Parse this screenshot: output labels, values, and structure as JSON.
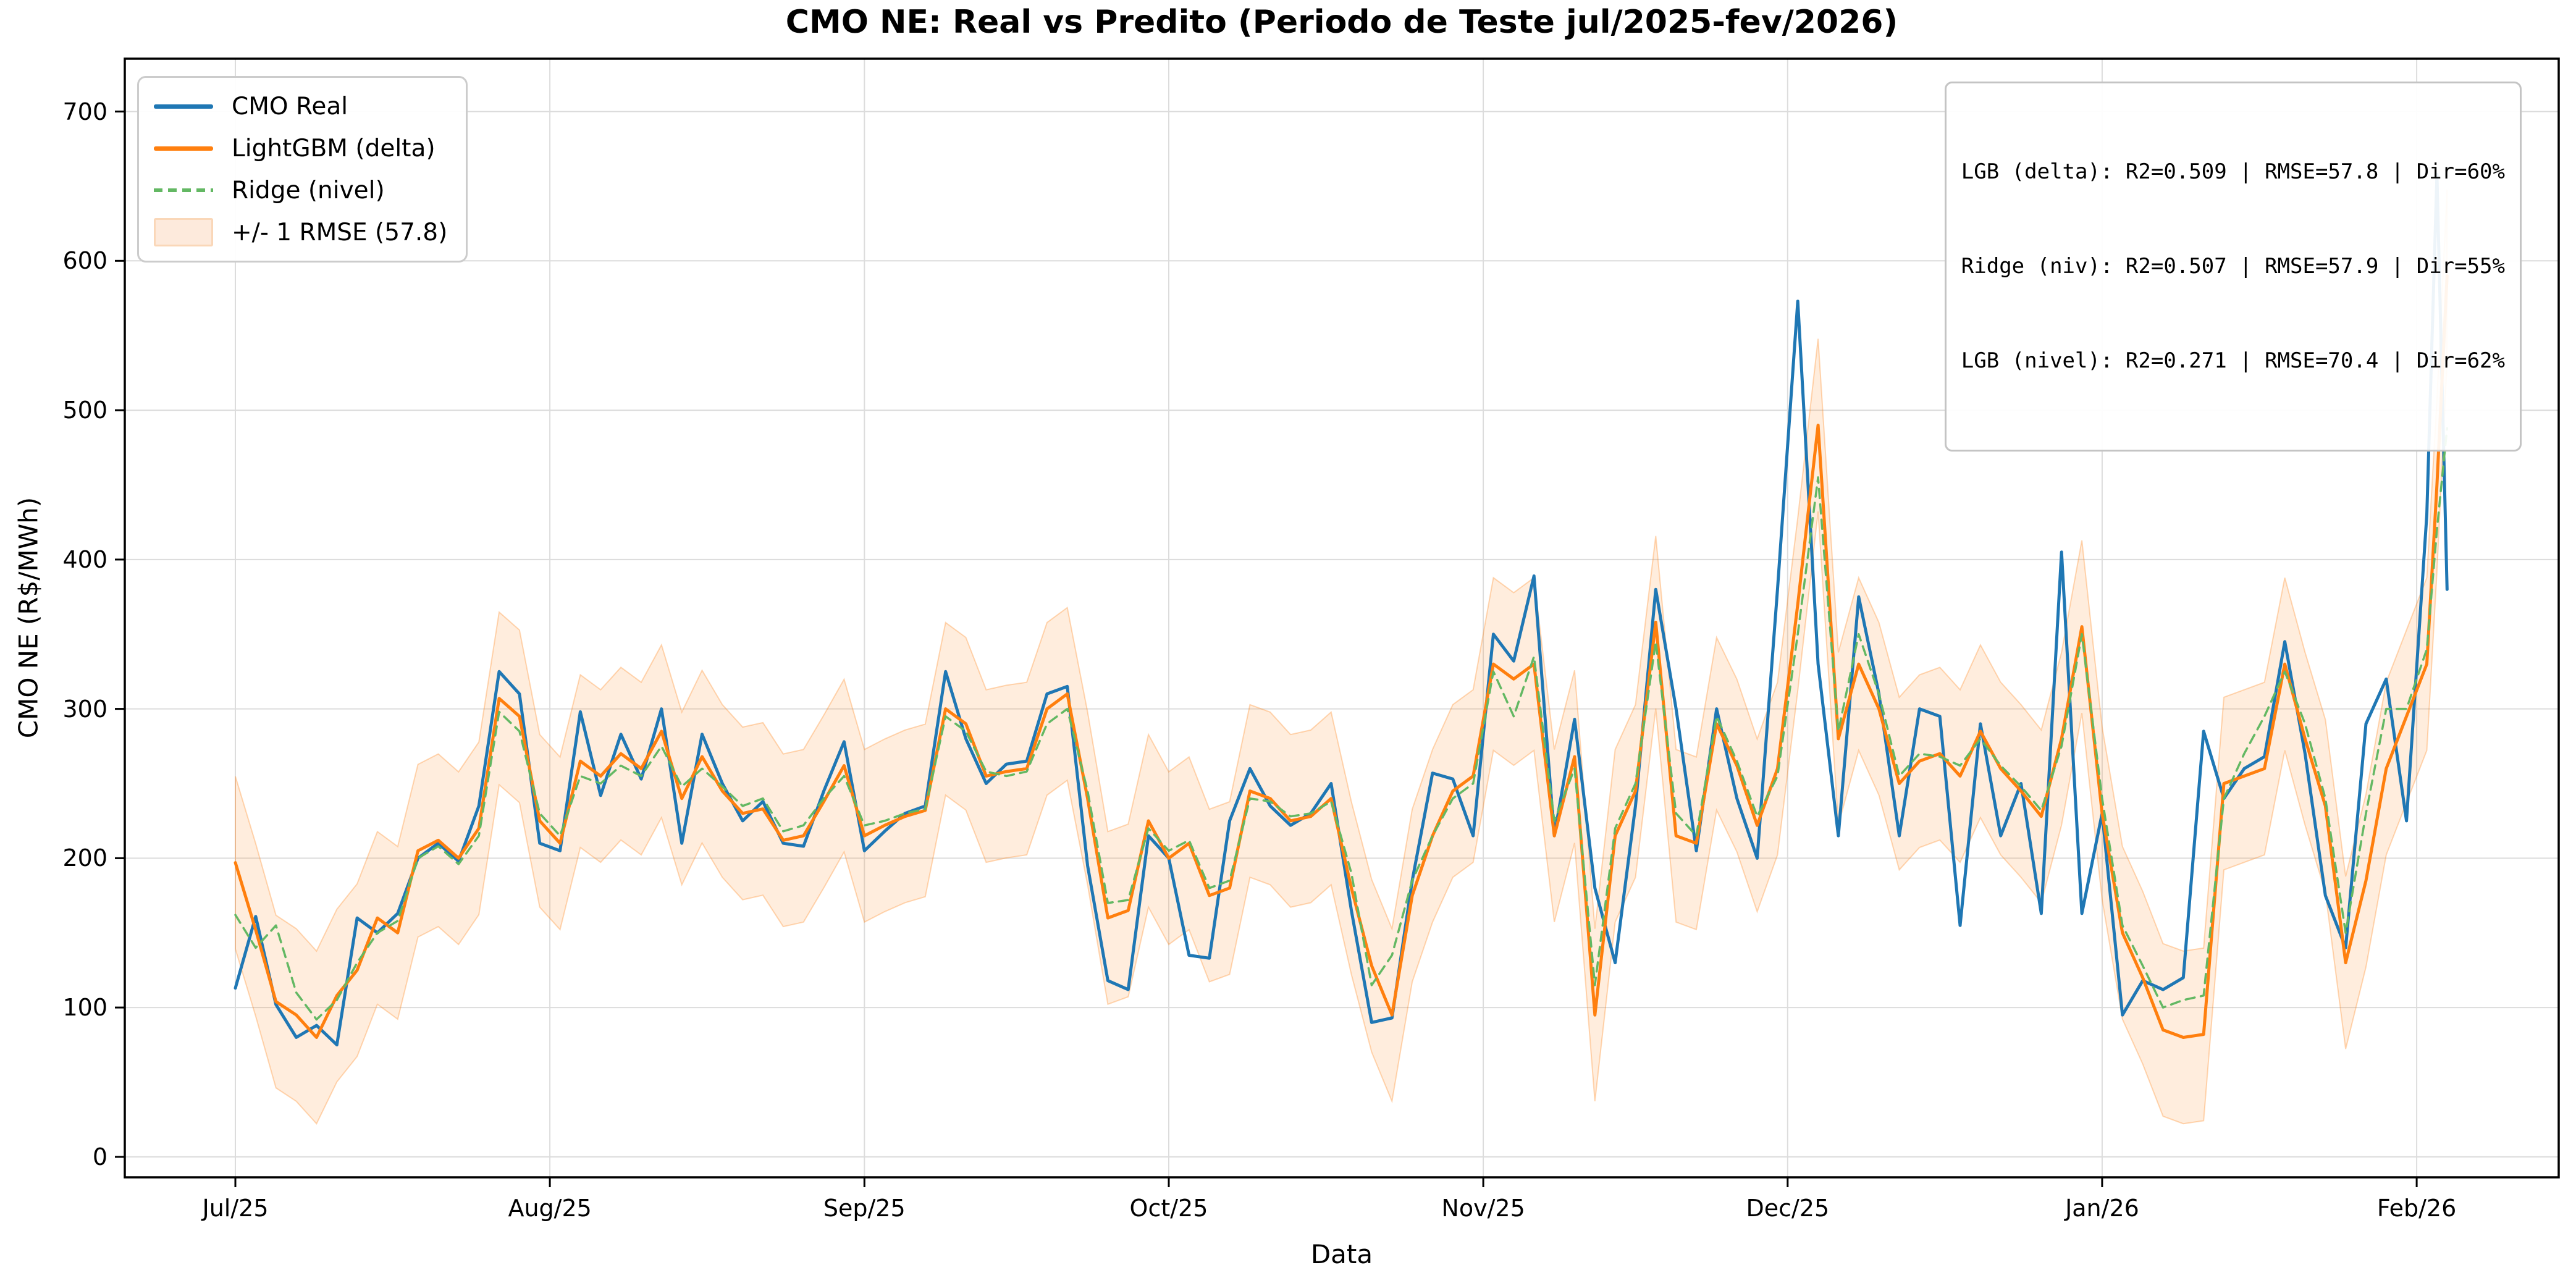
{
  "title": "CMO NE: Real vs Predito (Periodo de Teste jul/2025-fev/2026)",
  "axes": {
    "xlabel": "Data",
    "ylabel": "CMO NE (R$/MWh)",
    "yticks": [
      0,
      100,
      200,
      300,
      400,
      500,
      600,
      700
    ],
    "xticks": [
      {
        "label": "Jul/25",
        "date": "2025-07-01"
      },
      {
        "label": "Aug/25",
        "date": "2025-08-01"
      },
      {
        "label": "Sep/25",
        "date": "2025-09-01"
      },
      {
        "label": "Oct/25",
        "date": "2025-10-01"
      },
      {
        "label": "Nov/25",
        "date": "2025-11-01"
      },
      {
        "label": "Dec/25",
        "date": "2025-12-01"
      },
      {
        "label": "Jan/26",
        "date": "2026-01-01"
      },
      {
        "label": "Feb/26",
        "date": "2026-02-01"
      }
    ]
  },
  "legend": {
    "items": [
      {
        "label": "CMO Real",
        "color": "#1f77b4",
        "style": "solid"
      },
      {
        "label": "LightGBM (delta)",
        "color": "#ff7f0e",
        "style": "solid"
      },
      {
        "label": "Ridge (nivel)",
        "color": "#63b863",
        "style": "dashed"
      },
      {
        "label": "+/- 1 RMSE (57.8)",
        "color": "#fdeadc",
        "style": "band"
      }
    ]
  },
  "annotation": {
    "lines": [
      "LGB (delta): R2=0.509 | RMSE=57.8 | Dir=60%",
      "Ridge (niv): R2=0.507 | RMSE=57.9 | Dir=55%",
      "LGB (nivel): R2=0.271 | RMSE=70.4 | Dir=62%"
    ]
  },
  "chart_data": {
    "type": "line",
    "title": "CMO NE: Real vs Predito (Periodo de Teste jul/2025-fev/2026)",
    "xlabel": "Data",
    "ylabel": "CMO NE (R$/MWh)",
    "ylim": [
      -13.7,
      735.4
    ],
    "xlim_days": [
      -10.9,
      229.0
    ],
    "grid": true,
    "legend_position": "upper left",
    "yticks": [
      0,
      100,
      200,
      300,
      400,
      500,
      600,
      700
    ],
    "xtick_labels": [
      "Jul/25",
      "Aug/25",
      "Sep/25",
      "Oct/25",
      "Nov/25",
      "Dec/25",
      "Jan/26",
      "Feb/26"
    ],
    "dates": [
      "2025-07-01",
      "2025-07-03",
      "2025-07-05",
      "2025-07-07",
      "2025-07-09",
      "2025-07-11",
      "2025-07-13",
      "2025-07-15",
      "2025-07-17",
      "2025-07-19",
      "2025-07-21",
      "2025-07-23",
      "2025-07-25",
      "2025-07-27",
      "2025-07-29",
      "2025-07-31",
      "2025-08-02",
      "2025-08-04",
      "2025-08-06",
      "2025-08-08",
      "2025-08-10",
      "2025-08-12",
      "2025-08-14",
      "2025-08-16",
      "2025-08-18",
      "2025-08-20",
      "2025-08-22",
      "2025-08-24",
      "2025-08-26",
      "2025-08-28",
      "2025-08-30",
      "2025-09-01",
      "2025-09-03",
      "2025-09-05",
      "2025-09-07",
      "2025-09-09",
      "2025-09-11",
      "2025-09-13",
      "2025-09-15",
      "2025-09-17",
      "2025-09-19",
      "2025-09-21",
      "2025-09-23",
      "2025-09-25",
      "2025-09-27",
      "2025-09-29",
      "2025-10-01",
      "2025-10-03",
      "2025-10-05",
      "2025-10-07",
      "2025-10-09",
      "2025-10-11",
      "2025-10-13",
      "2025-10-15",
      "2025-10-17",
      "2025-10-19",
      "2025-10-21",
      "2025-10-23",
      "2025-10-25",
      "2025-10-27",
      "2025-10-29",
      "2025-10-31",
      "2025-11-02",
      "2025-11-04",
      "2025-11-06",
      "2025-11-08",
      "2025-11-10",
      "2025-11-12",
      "2025-11-14",
      "2025-11-16",
      "2025-11-18",
      "2025-11-20",
      "2025-11-22",
      "2025-11-24",
      "2025-11-26",
      "2025-11-28",
      "2025-11-30",
      "2025-12-02",
      "2025-12-04",
      "2025-12-06",
      "2025-12-08",
      "2025-12-10",
      "2025-12-12",
      "2025-12-14",
      "2025-12-16",
      "2025-12-18",
      "2025-12-20",
      "2025-12-22",
      "2025-12-24",
      "2025-12-26",
      "2025-12-28",
      "2025-12-30",
      "2026-01-01",
      "2026-01-03",
      "2026-01-05",
      "2026-01-07",
      "2026-01-09",
      "2026-01-11",
      "2026-01-13",
      "2026-01-15",
      "2026-01-17",
      "2026-01-19",
      "2026-01-21",
      "2026-01-23",
      "2026-01-25",
      "2026-01-27",
      "2026-01-29",
      "2026-01-31",
      "2026-02-02",
      "2026-02-03",
      "2026-02-04"
    ],
    "series": [
      {
        "name": "CMO Real",
        "color": "#1f77b4",
        "line_style": "solid",
        "line_width": 5,
        "values": [
          113,
          161,
          102,
          80,
          88,
          75,
          160,
          150,
          163,
          200,
          210,
          198,
          235,
          325,
          310,
          210,
          205,
          298,
          242,
          283,
          253,
          300,
          210,
          283,
          250,
          225,
          238,
          210,
          208,
          245,
          278,
          205,
          218,
          230,
          235,
          325,
          280,
          250,
          263,
          265,
          310,
          315,
          195,
          118,
          112,
          215,
          200,
          135,
          133,
          225,
          260,
          235,
          222,
          230,
          250,
          165,
          90,
          93,
          185,
          257,
          253,
          215,
          350,
          332,
          389,
          215,
          293,
          180,
          130,
          235,
          380,
          300,
          205,
          300,
          240,
          200,
          380,
          573,
          330,
          215,
          375,
          310,
          215,
          300,
          295,
          155,
          290,
          215,
          250,
          163,
          405,
          163,
          230,
          95,
          118,
          112,
          120,
          285,
          240,
          260,
          268,
          345,
          270,
          175,
          140,
          290,
          320,
          225,
          430,
          658,
          380
        ]
      },
      {
        "name": "LightGBM (delta)",
        "color": "#ff7f0e",
        "line_style": "solid",
        "line_width": 5,
        "values": [
          197,
          152,
          104,
          95,
          80,
          108,
          125,
          160,
          150,
          205,
          212,
          200,
          220,
          307,
          295,
          225,
          210,
          265,
          255,
          270,
          260,
          285,
          240,
          268,
          245,
          230,
          233,
          212,
          215,
          238,
          262,
          215,
          222,
          228,
          232,
          300,
          290,
          255,
          258,
          260,
          300,
          310,
          240,
          160,
          165,
          225,
          200,
          210,
          175,
          180,
          245,
          240,
          225,
          228,
          240,
          180,
          128,
          95,
          175,
          215,
          245,
          255,
          330,
          320,
          330,
          215,
          268,
          95,
          215,
          245,
          358,
          215,
          210,
          290,
          262,
          222,
          260,
          370,
          490,
          280,
          330,
          300,
          250,
          265,
          270,
          255,
          285,
          260,
          245,
          228,
          280,
          355,
          230,
          150,
          120,
          85,
          80,
          82,
          250,
          255,
          260,
          330,
          280,
          235,
          130,
          185,
          260,
          295,
          330,
          450,
          590
        ]
      },
      {
        "name": "Ridge (nivel)",
        "color": "#63b863",
        "line_style": "dashed",
        "line_width": 3.5,
        "values": [
          162,
          140,
          155,
          110,
          92,
          105,
          130,
          150,
          158,
          200,
          208,
          196,
          215,
          298,
          285,
          230,
          215,
          255,
          250,
          262,
          255,
          275,
          248,
          260,
          248,
          235,
          240,
          218,
          222,
          240,
          255,
          222,
          225,
          230,
          233,
          295,
          285,
          258,
          255,
          258,
          290,
          300,
          245,
          170,
          172,
          220,
          205,
          212,
          180,
          185,
          240,
          238,
          228,
          230,
          238,
          190,
          115,
          135,
          185,
          215,
          240,
          250,
          325,
          295,
          335,
          225,
          260,
          115,
          220,
          250,
          345,
          230,
          215,
          295,
          265,
          228,
          255,
          350,
          455,
          285,
          350,
          310,
          255,
          270,
          268,
          262,
          280,
          262,
          248,
          232,
          275,
          350,
          240,
          155,
          128,
          100,
          105,
          108,
          240,
          270,
          295,
          325,
          290,
          240,
          150,
          230,
          300,
          300,
          340,
          420,
          488
        ]
      }
    ],
    "band": {
      "label": "+/- 1 RMSE (57.8)",
      "center_series": "LightGBM (delta)",
      "half_width": 57.8,
      "color": "#ff7f0e",
      "fill_opacity": 0.14,
      "edge_opacity": 0.3
    }
  }
}
